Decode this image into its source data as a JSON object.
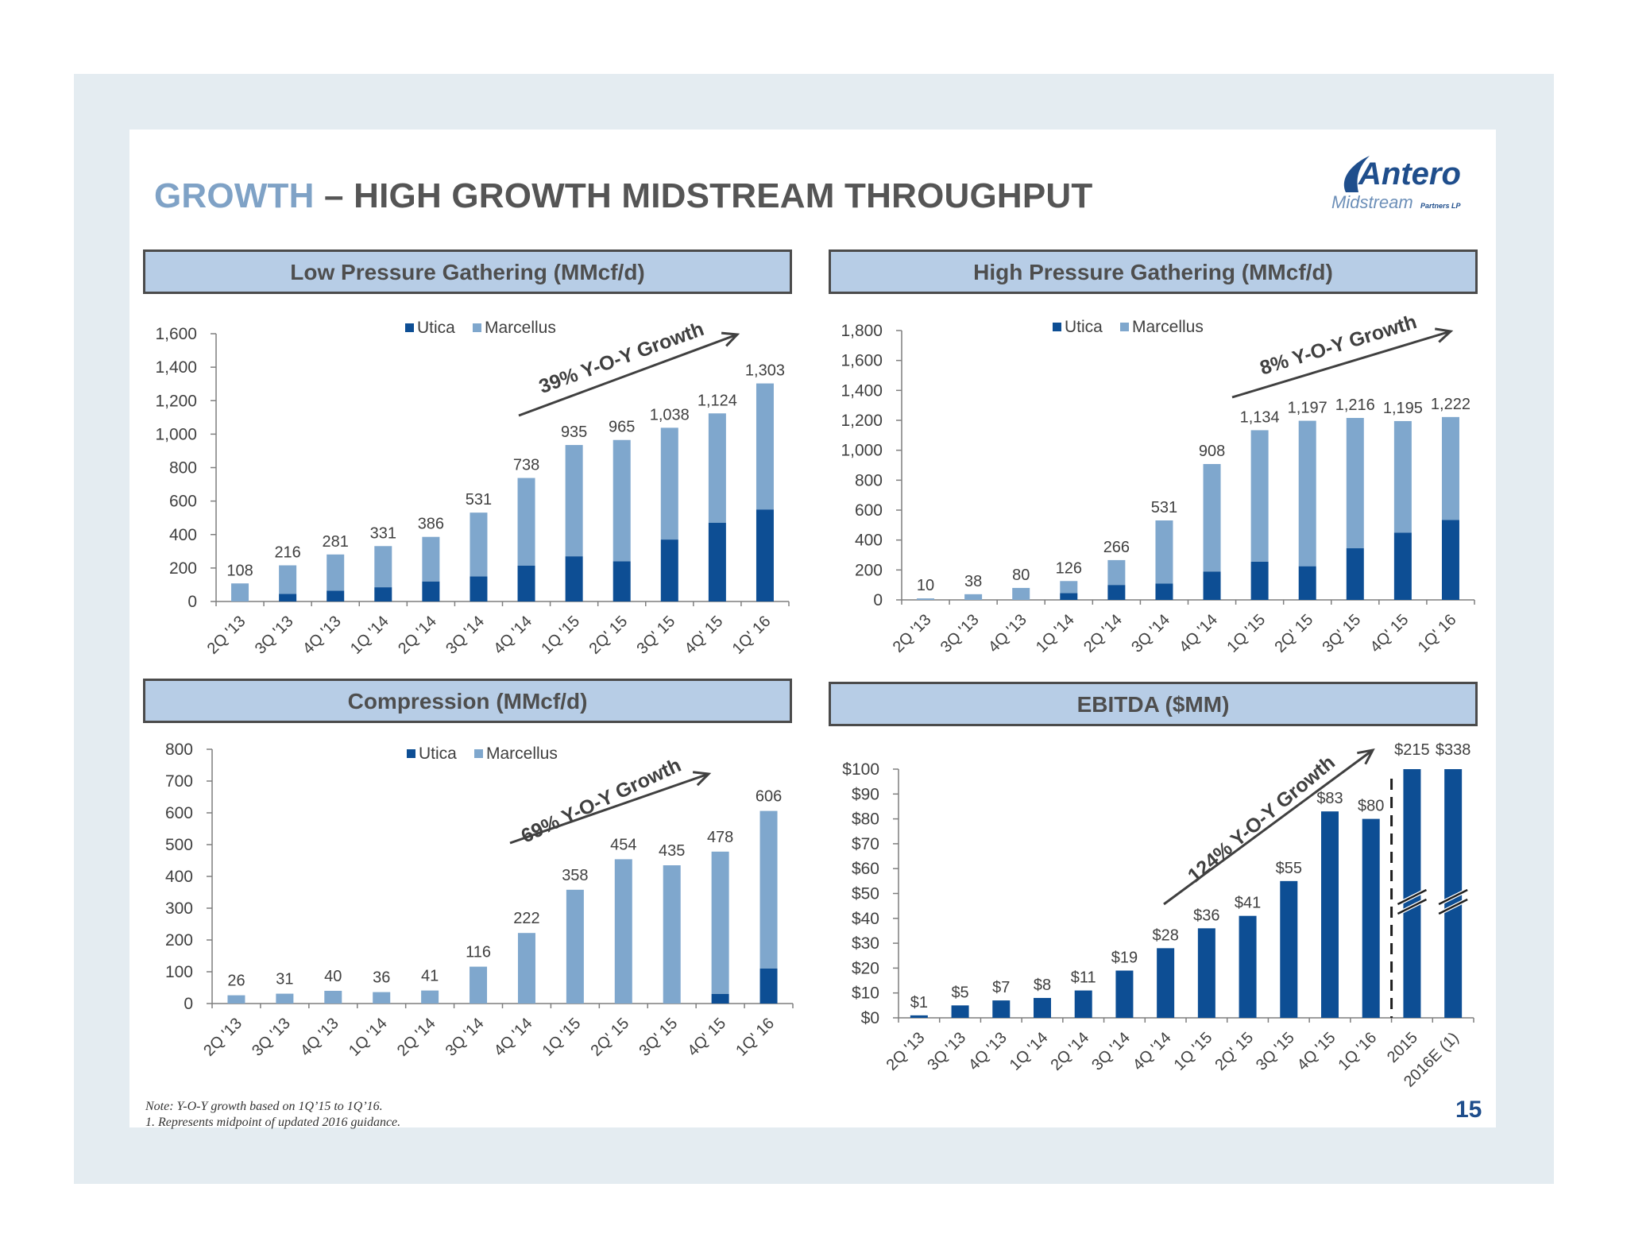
{
  "header": {
    "title_accent": "GROWTH",
    "title_rest": " – HIGH GROWTH MIDSTREAM THROUGHPUT",
    "logo_word": "Antero",
    "logo_sub": "Midstream",
    "logo_partners": "Partners LP"
  },
  "footer": {
    "note_line1": "Note: Y-O-Y growth based on 1Q’15 to 1Q’16.",
    "note_line2": "1.  Represents midpoint of updated 2016 guidance.",
    "page_number": "15"
  },
  "colors": {
    "utica": "#0d4e94",
    "marcellus": "#7fa7cd",
    "header_bg": "#b7cde6",
    "title_accent": "#7fa2c6"
  },
  "chart_data": [
    {
      "id": "lp",
      "type": "bar",
      "stacked": true,
      "title": "Low Pressure Gathering (MMcf/d)",
      "legend": [
        "Utica",
        "Marcellus"
      ],
      "legend_position": "top",
      "categories": [
        "2Q '13",
        "3Q '13",
        "4Q '13",
        "1Q '14",
        "2Q '14",
        "3Q '14",
        "4Q '14",
        "1Q '15",
        "2Q' 15",
        "3Q' 15",
        "4Q' 15",
        "1Q' 16"
      ],
      "series": [
        {
          "name": "Utica",
          "values": [
            0,
            45,
            65,
            85,
            120,
            150,
            215,
            270,
            240,
            370,
            470,
            550
          ]
        },
        {
          "name": "Marcellus",
          "values": [
            108,
            171,
            216,
            246,
            266,
            381,
            523,
            665,
            725,
            668,
            654,
            753
          ]
        }
      ],
      "totals": [
        "108",
        "216",
        "281",
        "331",
        "386",
        "531",
        "738",
        "935",
        "965",
        "1,038",
        "1,124",
        "1,303"
      ],
      "ylim": [
        0,
        1600
      ],
      "yticks": [
        "0",
        "200",
        "400",
        "600",
        "800",
        "1,000",
        "1,200",
        "1,400",
        "1,600"
      ],
      "growth_label": "39% Y-O-Y Growth"
    },
    {
      "id": "hp",
      "type": "bar",
      "stacked": true,
      "title": "High Pressure Gathering (MMcf/d)",
      "legend": [
        "Utica",
        "Marcellus"
      ],
      "legend_position": "top",
      "categories": [
        "2Q '13",
        "3Q '13",
        "4Q '13",
        "1Q '14",
        "2Q '14",
        "3Q '14",
        "4Q '14",
        "1Q '15",
        "2Q' 15",
        "3Q' 15",
        "4Q' 15",
        "1Q' 16"
      ],
      "series": [
        {
          "name": "Utica",
          "values": [
            0,
            0,
            0,
            45,
            100,
            110,
            190,
            255,
            225,
            345,
            450,
            535
          ]
        },
        {
          "name": "Marcellus",
          "values": [
            10,
            38,
            80,
            81,
            166,
            421,
            718,
            879,
            972,
            871,
            745,
            687
          ]
        }
      ],
      "totals": [
        "10",
        "38",
        "80",
        "126",
        "266",
        "531",
        "908",
        "1,134",
        "1,197",
        "1,216",
        "1,195",
        "1,222"
      ],
      "ylim": [
        0,
        1800
      ],
      "yticks": [
        "0",
        "200",
        "400",
        "600",
        "800",
        "1,000",
        "1,200",
        "1,400",
        "1,600",
        "1,800"
      ],
      "growth_label": "8% Y-O-Y Growth"
    },
    {
      "id": "cp",
      "type": "bar",
      "stacked": true,
      "title": "Compression (MMcf/d)",
      "legend": [
        "Utica",
        "Marcellus"
      ],
      "legend_position": "top",
      "categories": [
        "2Q '13",
        "3Q '13",
        "4Q '13",
        "1Q '14",
        "2Q '14",
        "3Q '14",
        "4Q '14",
        "1Q '15",
        "2Q' 15",
        "3Q' 15",
        "4Q' 15",
        "1Q' 16"
      ],
      "series": [
        {
          "name": "Utica",
          "values": [
            0,
            0,
            0,
            0,
            0,
            0,
            0,
            0,
            0,
            0,
            30,
            110
          ]
        },
        {
          "name": "Marcellus",
          "values": [
            26,
            31,
            40,
            36,
            41,
            116,
            222,
            358,
            454,
            435,
            448,
            496
          ]
        }
      ],
      "totals": [
        "26",
        "31",
        "40",
        "36",
        "41",
        "116",
        "222",
        "358",
        "454",
        "435",
        "478",
        "606"
      ],
      "ylim": [
        0,
        800
      ],
      "yticks": [
        "0",
        "100",
        "200",
        "300",
        "400",
        "500",
        "600",
        "700",
        "800"
      ],
      "growth_label": "69% Y-O-Y Growth"
    },
    {
      "id": "eb",
      "type": "bar",
      "stacked": false,
      "title": "EBITDA ($MM)",
      "categories": [
        "2Q '13",
        "3Q '13",
        "4Q '13",
        "1Q '14",
        "2Q '14",
        "3Q '14",
        "4Q '14",
        "1Q '15",
        "2Q' 15",
        "3Q '15",
        "4Q '15",
        "1Q '16",
        "2015",
        "2016E (1)"
      ],
      "values": [
        1,
        5,
        7,
        8,
        11,
        19,
        28,
        36,
        41,
        55,
        83,
        80,
        215,
        338
      ],
      "value_labels": [
        "$1",
        "$5",
        "$7",
        "$8",
        "$11",
        "$19",
        "$28",
        "$36",
        "$41",
        "$55",
        "$83",
        "$80",
        "$215",
        "$338"
      ],
      "ylim": [
        0,
        100
      ],
      "yticks": [
        "$0",
        "$10",
        "$20",
        "$30",
        "$40",
        "$50",
        "$60",
        "$70",
        "$80",
        "$90",
        "$100"
      ],
      "axis_break_bars": [
        "2015",
        "2016E (1)"
      ],
      "growth_label": "124% Y-O-Y Growth"
    }
  ]
}
